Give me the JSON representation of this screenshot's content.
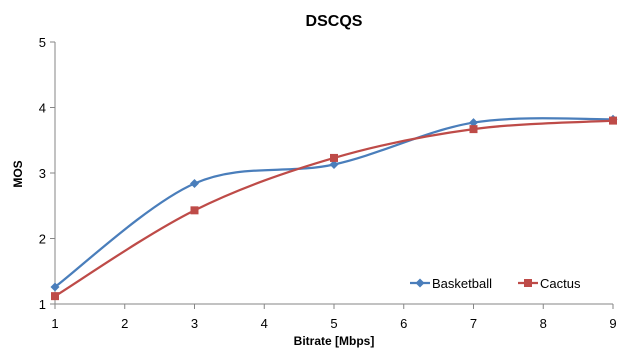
{
  "chart_data": {
    "type": "line",
    "title": "DSCQS",
    "xlabel": "Bitrate [Mbps]",
    "ylabel": "MOS",
    "xlim": [
      1,
      9
    ],
    "ylim": [
      1,
      5
    ],
    "xticks": [
      "1",
      "2",
      "3",
      "4",
      "5",
      "6",
      "7",
      "8",
      "9"
    ],
    "yticks": [
      "1",
      "2",
      "3",
      "4",
      "5"
    ],
    "grid": false,
    "smooth": true,
    "legend_position": "bottom-right",
    "series": [
      {
        "name": "Basketball",
        "color": "#4a7ebb",
        "marker": "diamond",
        "x": [
          1,
          3,
          5,
          7,
          9
        ],
        "y": [
          1.26,
          2.84,
          3.13,
          3.77,
          3.82
        ]
      },
      {
        "name": "Cactus",
        "color": "#be4b48",
        "marker": "square",
        "x": [
          1,
          3,
          5,
          7,
          9
        ],
        "y": [
          1.12,
          2.43,
          3.23,
          3.67,
          3.8
        ]
      }
    ]
  }
}
